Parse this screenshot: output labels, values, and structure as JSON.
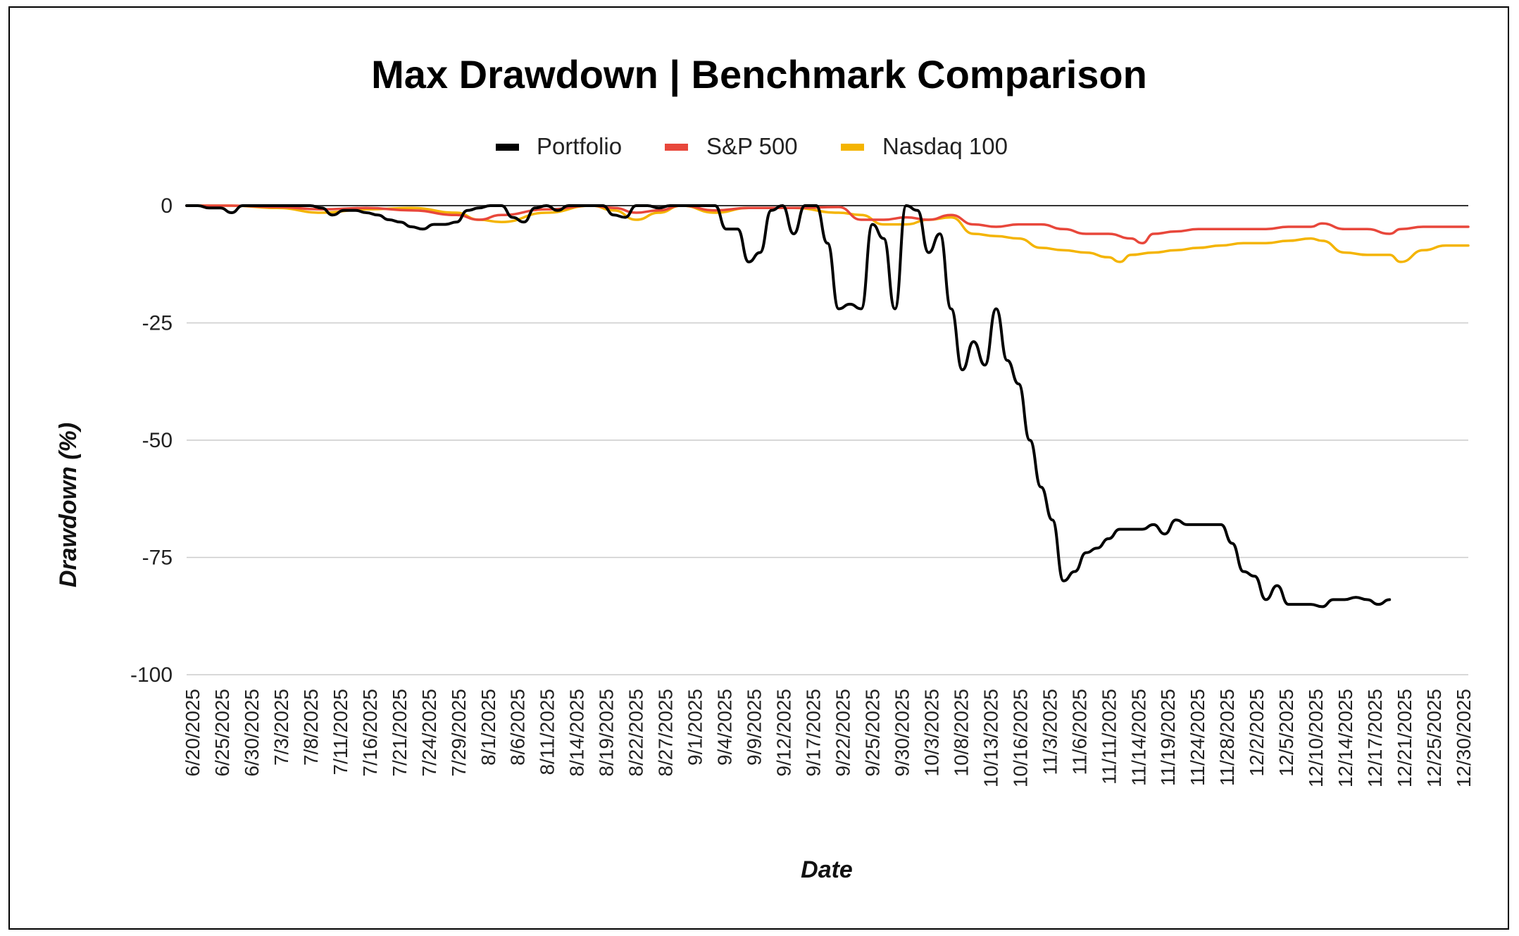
{
  "chart_data": {
    "type": "line",
    "title": "Max Drawdown | Benchmark Comparison",
    "xlabel": "Date",
    "ylabel": "Drawdown (%)",
    "ylim": [
      -100,
      0
    ],
    "yticks": [
      0,
      -25,
      -50,
      -75,
      -100
    ],
    "ytick_labels": [
      "0",
      "-25",
      "-50",
      "-75",
      "-100"
    ],
    "legend_position": "top",
    "grid": true,
    "x_tick_labels": [
      "6/20/2025",
      "6/25/2025",
      "6/30/2025",
      "7/3/2025",
      "7/8/2025",
      "7/11/2025",
      "7/16/2025",
      "7/21/2025",
      "7/24/2025",
      "7/29/2025",
      "8/1/2025",
      "8/6/2025",
      "8/11/2025",
      "8/14/2025",
      "8/19/2025",
      "8/22/2025",
      "8/27/2025",
      "9/1/2025",
      "9/4/2025",
      "9/9/2025",
      "9/12/2025",
      "9/17/2025",
      "9/22/2025",
      "9/25/2025",
      "9/30/2025",
      "10/3/2025",
      "10/8/2025",
      "10/13/2025",
      "10/16/2025",
      "11/3/2025",
      "11/6/2025",
      "11/11/2025",
      "11/14/2025",
      "11/19/2025",
      "11/24/2025",
      "11/28/2025",
      "12/2/2025",
      "12/5/2025",
      "12/10/2025",
      "12/14/2025",
      "12/17/2025",
      "12/21/2025",
      "12/25/2025",
      "12/30/2025"
    ],
    "series": [
      {
        "name": "Portfolio",
        "color": "#000000",
        "values": [
          [
            0,
            0
          ],
          [
            1,
            0
          ],
          [
            2,
            -0.5
          ],
          [
            3,
            -0.5
          ],
          [
            4,
            -1.5
          ],
          [
            5,
            0
          ],
          [
            6,
            0
          ],
          [
            7,
            0
          ],
          [
            8,
            0
          ],
          [
            9,
            0
          ],
          [
            10,
            0
          ],
          [
            11,
            0
          ],
          [
            12,
            -0.5
          ],
          [
            13,
            -2
          ],
          [
            14,
            -1
          ],
          [
            15,
            -1
          ],
          [
            16,
            -1.5
          ],
          [
            17,
            -2
          ],
          [
            18,
            -3
          ],
          [
            19,
            -3.5
          ],
          [
            20,
            -4.5
          ],
          [
            21,
            -5
          ],
          [
            22,
            -4
          ],
          [
            23,
            -4
          ],
          [
            24,
            -3.5
          ],
          [
            25,
            -1
          ],
          [
            26,
            -0.5
          ],
          [
            27,
            0
          ],
          [
            28,
            0
          ],
          [
            29,
            -2.5
          ],
          [
            30,
            -3.5
          ],
          [
            31,
            -0.5
          ],
          [
            32,
            0
          ],
          [
            33,
            -1
          ],
          [
            34,
            0
          ],
          [
            35,
            0
          ],
          [
            36,
            0
          ],
          [
            37,
            0
          ],
          [
            38,
            -2
          ],
          [
            39,
            -2.5
          ],
          [
            40,
            0
          ],
          [
            41,
            0
          ],
          [
            42,
            -0.5
          ],
          [
            43,
            0
          ],
          [
            44,
            0
          ],
          [
            45,
            0
          ],
          [
            46,
            0
          ],
          [
            47,
            0
          ],
          [
            48,
            -5
          ],
          [
            49,
            -5
          ],
          [
            50,
            -12
          ],
          [
            51,
            -10
          ],
          [
            52,
            -1
          ],
          [
            53,
            0
          ],
          [
            54,
            -6
          ],
          [
            55,
            0
          ],
          [
            56,
            0
          ],
          [
            57,
            -8
          ],
          [
            58,
            -22
          ],
          [
            59,
            -21
          ],
          [
            60,
            -22
          ],
          [
            61,
            -4
          ],
          [
            62,
            -7
          ],
          [
            63,
            -22
          ],
          [
            64,
            0
          ],
          [
            65,
            -1
          ],
          [
            66,
            -10
          ],
          [
            67,
            -6
          ],
          [
            68,
            -22
          ],
          [
            69,
            -35
          ],
          [
            70,
            -29
          ],
          [
            71,
            -34
          ],
          [
            72,
            -22
          ],
          [
            73,
            -33
          ],
          [
            74,
            -38
          ],
          [
            75,
            -50
          ],
          [
            76,
            -60
          ],
          [
            77,
            -67
          ],
          [
            78,
            -80
          ],
          [
            79,
            -78
          ],
          [
            80,
            -74
          ],
          [
            81,
            -73
          ],
          [
            82,
            -71
          ],
          [
            83,
            -69
          ],
          [
            84,
            -69
          ],
          [
            85,
            -69
          ],
          [
            86,
            -68
          ],
          [
            87,
            -70
          ],
          [
            88,
            -67
          ],
          [
            89,
            -68
          ],
          [
            90,
            -68
          ],
          [
            91,
            -68
          ],
          [
            92,
            -68
          ],
          [
            93,
            -72
          ],
          [
            94,
            -78
          ],
          [
            95,
            -79
          ],
          [
            96,
            -84
          ],
          [
            97,
            -81
          ],
          [
            98,
            -85
          ],
          [
            99,
            -85
          ],
          [
            100,
            -85
          ],
          [
            101,
            -85.5
          ],
          [
            102,
            -84
          ],
          [
            103,
            -84
          ],
          [
            104,
            -83.5
          ],
          [
            105,
            -84
          ],
          [
            106,
            -85
          ],
          [
            107,
            -84
          ]
        ]
      },
      {
        "name": "S&P 500",
        "color": "#e8473b",
        "values": [
          [
            0,
            0
          ],
          [
            4,
            0
          ],
          [
            8,
            -0.3
          ],
          [
            12,
            -0.8
          ],
          [
            16,
            -0.5
          ],
          [
            20,
            -1
          ],
          [
            24,
            -2
          ],
          [
            26,
            -3
          ],
          [
            28,
            -2
          ],
          [
            32,
            -0.8
          ],
          [
            36,
            0
          ],
          [
            38,
            -0.5
          ],
          [
            40,
            -1.5
          ],
          [
            42,
            -1
          ],
          [
            44,
            0
          ],
          [
            47,
            -1
          ],
          [
            50,
            -0.5
          ],
          [
            54,
            -0.5
          ],
          [
            58,
            -0.3
          ],
          [
            60,
            -3
          ],
          [
            62,
            -3
          ],
          [
            64,
            -2.5
          ],
          [
            66,
            -3
          ],
          [
            68,
            -2
          ],
          [
            70,
            -4
          ],
          [
            72,
            -4.5
          ],
          [
            74,
            -4
          ],
          [
            76,
            -4
          ],
          [
            78,
            -5
          ],
          [
            80,
            -6
          ],
          [
            82,
            -6
          ],
          [
            84,
            -7
          ],
          [
            85,
            -8
          ],
          [
            86,
            -6
          ],
          [
            88,
            -5.5
          ],
          [
            90,
            -5
          ],
          [
            92,
            -5
          ],
          [
            94,
            -5
          ],
          [
            96,
            -5
          ],
          [
            98,
            -4.5
          ],
          [
            100,
            -4.5
          ],
          [
            101,
            -3.8
          ],
          [
            103,
            -5
          ],
          [
            105,
            -5
          ],
          [
            107,
            -6
          ],
          [
            108,
            -5
          ],
          [
            110,
            -4.5
          ],
          [
            112,
            -4.5
          ],
          [
            114,
            -4.5
          ]
        ]
      },
      {
        "name": "Nasdaq 100",
        "color": "#f4b400",
        "values": [
          [
            0,
            0
          ],
          [
            4,
            0
          ],
          [
            8,
            -0.5
          ],
          [
            12,
            -1.5
          ],
          [
            16,
            -0.8
          ],
          [
            20,
            -0.5
          ],
          [
            24,
            -1.5
          ],
          [
            26,
            -3
          ],
          [
            28,
            -3.5
          ],
          [
            32,
            -1.5
          ],
          [
            36,
            0
          ],
          [
            38,
            -1
          ],
          [
            40,
            -3
          ],
          [
            42,
            -1.5
          ],
          [
            44,
            0
          ],
          [
            47,
            -1.5
          ],
          [
            50,
            -0.5
          ],
          [
            54,
            -0.5
          ],
          [
            58,
            -1.5
          ],
          [
            60,
            -2
          ],
          [
            62,
            -4
          ],
          [
            64,
            -4
          ],
          [
            66,
            -3
          ],
          [
            68,
            -2.5
          ],
          [
            70,
            -6
          ],
          [
            72,
            -6.5
          ],
          [
            74,
            -7
          ],
          [
            76,
            -9
          ],
          [
            78,
            -9.5
          ],
          [
            80,
            -10
          ],
          [
            82,
            -11
          ],
          [
            83,
            -12
          ],
          [
            84,
            -10.5
          ],
          [
            86,
            -10
          ],
          [
            88,
            -9.5
          ],
          [
            90,
            -9
          ],
          [
            92,
            -8.5
          ],
          [
            94,
            -8
          ],
          [
            96,
            -8
          ],
          [
            98,
            -7.5
          ],
          [
            100,
            -7
          ],
          [
            101,
            -7.5
          ],
          [
            103,
            -10
          ],
          [
            105,
            -10.5
          ],
          [
            107,
            -10.5
          ],
          [
            108,
            -12
          ],
          [
            110,
            -9.5
          ],
          [
            112,
            -8.5
          ],
          [
            114,
            -8.5
          ]
        ]
      }
    ]
  }
}
